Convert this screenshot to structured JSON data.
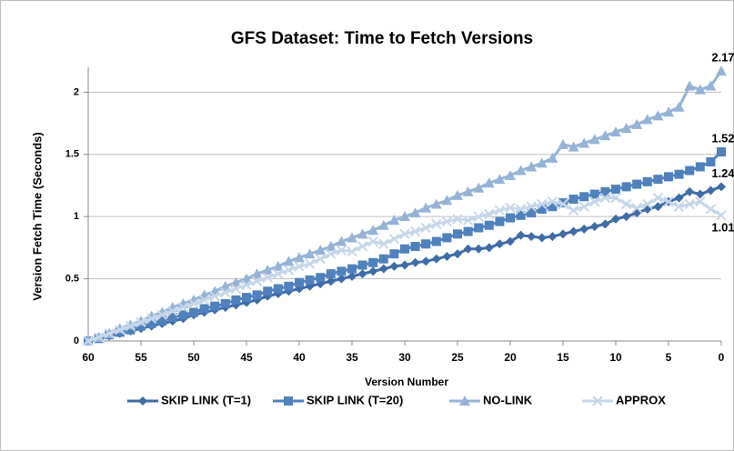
{
  "chart_data": {
    "type": "line",
    "title": "GFS Dataset: Time to Fetch Versions",
    "xlabel": "Version Number",
    "ylabel": "Version Fetch Time (Seconds)",
    "x": [
      60,
      59,
      58,
      57,
      56,
      55,
      54,
      53,
      52,
      51,
      50,
      49,
      48,
      47,
      46,
      45,
      44,
      43,
      42,
      41,
      40,
      39,
      38,
      37,
      36,
      35,
      34,
      33,
      32,
      31,
      30,
      29,
      28,
      27,
      26,
      25,
      24,
      23,
      22,
      21,
      20,
      19,
      18,
      17,
      16,
      15,
      14,
      13,
      12,
      11,
      10,
      9,
      8,
      7,
      6,
      5,
      4,
      3,
      2,
      1,
      0
    ],
    "xlim": [
      60,
      0
    ],
    "xticks": [
      60,
      55,
      50,
      45,
      40,
      35,
      30,
      25,
      20,
      15,
      10,
      5,
      0
    ],
    "ylim": [
      0,
      2.2
    ],
    "yticks": [
      0,
      0.5,
      1,
      1.5,
      2
    ],
    "grid": true,
    "legend": "bottom",
    "series": [
      {
        "name": "SKIP LINK (T=1)",
        "color": "#3f6ca8",
        "marker": "diamond",
        "values": [
          0,
          0.02,
          0.04,
          0.06,
          0.08,
          0.1,
          0.12,
          0.14,
          0.16,
          0.18,
          0.21,
          0.23,
          0.25,
          0.27,
          0.29,
          0.31,
          0.33,
          0.36,
          0.38,
          0.4,
          0.42,
          0.44,
          0.46,
          0.48,
          0.5,
          0.52,
          0.54,
          0.56,
          0.58,
          0.6,
          0.61,
          0.63,
          0.64,
          0.66,
          0.68,
          0.7,
          0.74,
          0.74,
          0.75,
          0.78,
          0.8,
          0.85,
          0.84,
          0.83,
          0.84,
          0.86,
          0.88,
          0.9,
          0.92,
          0.94,
          0.98,
          1.0,
          1.03,
          1.06,
          1.08,
          1.12,
          1.15,
          1.2,
          1.18,
          1.21,
          1.24
        ]
      },
      {
        "name": "SKIP LINK (T=20)",
        "color": "#4f81bd",
        "marker": "square",
        "values": [
          0,
          0.02,
          0.05,
          0.07,
          0.09,
          0.12,
          0.14,
          0.16,
          0.19,
          0.21,
          0.23,
          0.26,
          0.28,
          0.3,
          0.33,
          0.35,
          0.37,
          0.4,
          0.42,
          0.44,
          0.47,
          0.49,
          0.51,
          0.54,
          0.56,
          0.58,
          0.61,
          0.63,
          0.66,
          0.7,
          0.74,
          0.76,
          0.78,
          0.8,
          0.83,
          0.86,
          0.88,
          0.91,
          0.93,
          0.96,
          0.99,
          1.01,
          1.03,
          1.06,
          1.08,
          1.11,
          1.14,
          1.16,
          1.18,
          1.2,
          1.22,
          1.24,
          1.26,
          1.28,
          1.3,
          1.32,
          1.34,
          1.37,
          1.4,
          1.44,
          1.52
        ]
      },
      {
        "name": "NO-LINK",
        "color": "#95b3d7",
        "marker": "triangle",
        "values": [
          0,
          0.03,
          0.06,
          0.1,
          0.13,
          0.16,
          0.2,
          0.23,
          0.27,
          0.3,
          0.33,
          0.37,
          0.4,
          0.44,
          0.47,
          0.5,
          0.54,
          0.57,
          0.6,
          0.64,
          0.67,
          0.7,
          0.73,
          0.76,
          0.8,
          0.83,
          0.86,
          0.89,
          0.93,
          0.97,
          1.0,
          1.03,
          1.07,
          1.1,
          1.13,
          1.17,
          1.2,
          1.23,
          1.27,
          1.3,
          1.33,
          1.37,
          1.4,
          1.43,
          1.47,
          1.58,
          1.56,
          1.59,
          1.62,
          1.65,
          1.68,
          1.71,
          1.74,
          1.78,
          1.81,
          1.84,
          1.88,
          2.05,
          2.02,
          2.05,
          2.17
        ]
      },
      {
        "name": "APPROX",
        "color": "#c6d6ea",
        "marker": "x",
        "values": [
          0,
          0.03,
          0.06,
          0.09,
          0.12,
          0.15,
          0.18,
          0.21,
          0.24,
          0.27,
          0.3,
          0.33,
          0.36,
          0.39,
          0.42,
          0.45,
          0.48,
          0.51,
          0.54,
          0.57,
          0.6,
          0.62,
          0.66,
          0.7,
          0.73,
          0.72,
          0.76,
          0.8,
          0.78,
          0.82,
          0.86,
          0.88,
          0.91,
          0.94,
          0.96,
          0.98,
          0.97,
          1.0,
          1.02,
          1.05,
          1.07,
          1.06,
          1.08,
          1.1,
          1.12,
          1.1,
          1.05,
          1.08,
          1.12,
          1.15,
          1.15,
          1.1,
          1.07,
          1.1,
          1.15,
          1.12,
          1.08,
          1.1,
          1.12,
          1.06,
          1.01
        ]
      }
    ]
  }
}
